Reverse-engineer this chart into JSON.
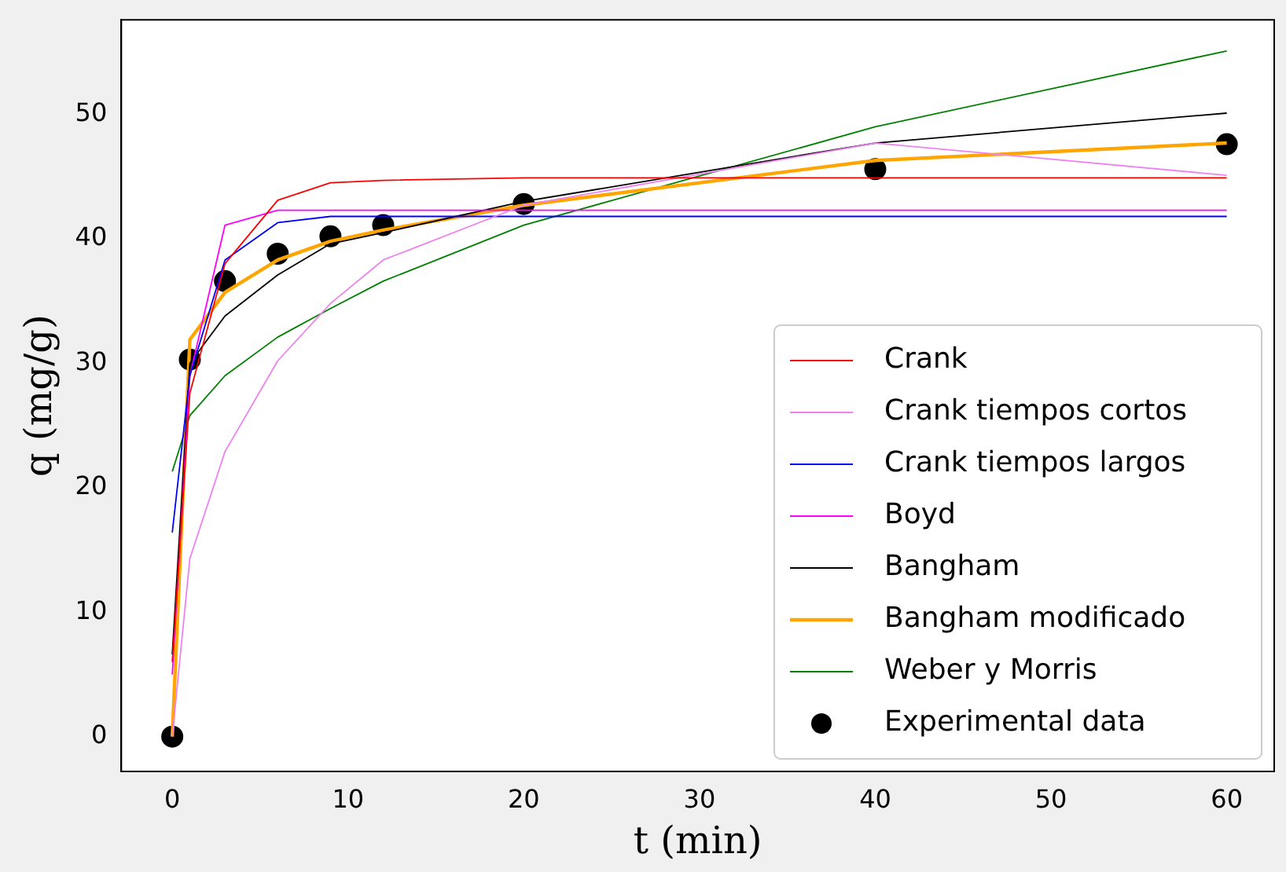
{
  "chart_data": {
    "type": "line",
    "xlabel": "t (min)",
    "ylabel": "q (mg/g)",
    "x": [
      0,
      1,
      3,
      6,
      9,
      12,
      20,
      40,
      60
    ],
    "xlim": [
      -2.9,
      62.7
    ],
    "xticks": [
      0,
      10,
      20,
      30,
      40,
      50,
      60
    ],
    "ylim": [
      -2.8,
      57.6
    ],
    "yticks": [
      0,
      10,
      20,
      30,
      40,
      50
    ],
    "grid": false,
    "legend": "bottom right",
    "marker": "none",
    "line_style": "solid",
    "series": [
      {
        "name": "Crank",
        "color": "#ff0000",
        "values": [
          6,
          27.6,
          38,
          43.1,
          44.5,
          44.7,
          44.9,
          44.9,
          44.9
        ]
      },
      {
        "name": "Crank tiempos cortos",
        "color": "#ee82ee",
        "values": [
          0,
          14.3,
          22.9,
          30.2,
          34.8,
          38.3,
          42.7,
          47.7,
          45.1
        ]
      },
      {
        "name": "Crank tiempos largos",
        "color": "#0000ff",
        "values": [
          16.4,
          29,
          38.3,
          41.3,
          41.8,
          41.8,
          41.8,
          41.8,
          41.8
        ]
      },
      {
        "name": "Boyd",
        "color": "#ff00ff",
        "values": [
          5,
          29,
          41.1,
          42.3,
          42.3,
          42.3,
          42.3,
          42.3,
          42.3
        ]
      },
      {
        "name": "Bangham",
        "color": "#000000",
        "values": [
          6.6,
          30,
          33.8,
          37.1,
          39.6,
          40.5,
          43,
          47.7,
          50.1
        ]
      },
      {
        "name": "Bangham modificado",
        "color": "#ffa500",
        "values": [
          0,
          31.9,
          35.7,
          38.3,
          39.8,
          40.7,
          42.7,
          46.3,
          47.7
        ]
      },
      {
        "name": "Weber y Morris",
        "color": "#008000",
        "values": [
          21.3,
          25.8,
          29,
          32.1,
          34.4,
          36.6,
          41.1,
          49,
          55.1
        ]
      },
      {
        "name": "Experimental data",
        "type": "scatter",
        "marker": "circle",
        "color": "#000000",
        "values": [
          0,
          30.3,
          36.6,
          38.8,
          40.2,
          41.1,
          42.8,
          45.6,
          47.6
        ]
      }
    ]
  }
}
